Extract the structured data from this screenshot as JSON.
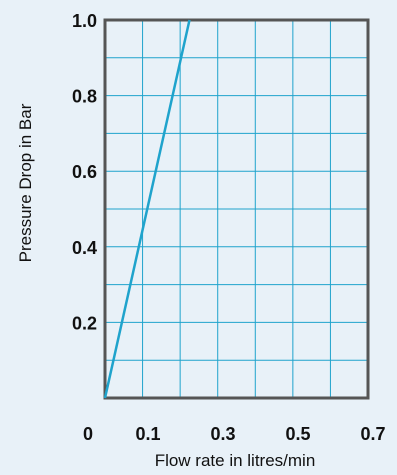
{
  "chart_data": {
    "type": "line",
    "title": "",
    "xlabel": "Flow rate in litres/min",
    "ylabel": "Pressure Drop in Bar",
    "xlim": [
      0,
      0.7
    ],
    "ylim": [
      0,
      1.0
    ],
    "x_tick_labels": [
      "0",
      "0.1",
      "0.3",
      "0.5",
      "0.7"
    ],
    "y_tick_labels": [
      "0.2",
      "0.4",
      "0.6",
      "0.8",
      "1.0"
    ],
    "grid": true,
    "series": [
      {
        "x": [
          0,
          0.225
        ],
        "y": [
          0,
          1.0
        ]
      }
    ]
  },
  "colors": {
    "background": "#e8f1f8",
    "grid": "#1fa3cc",
    "axes": "#555555",
    "line": "#1fa3cc"
  }
}
